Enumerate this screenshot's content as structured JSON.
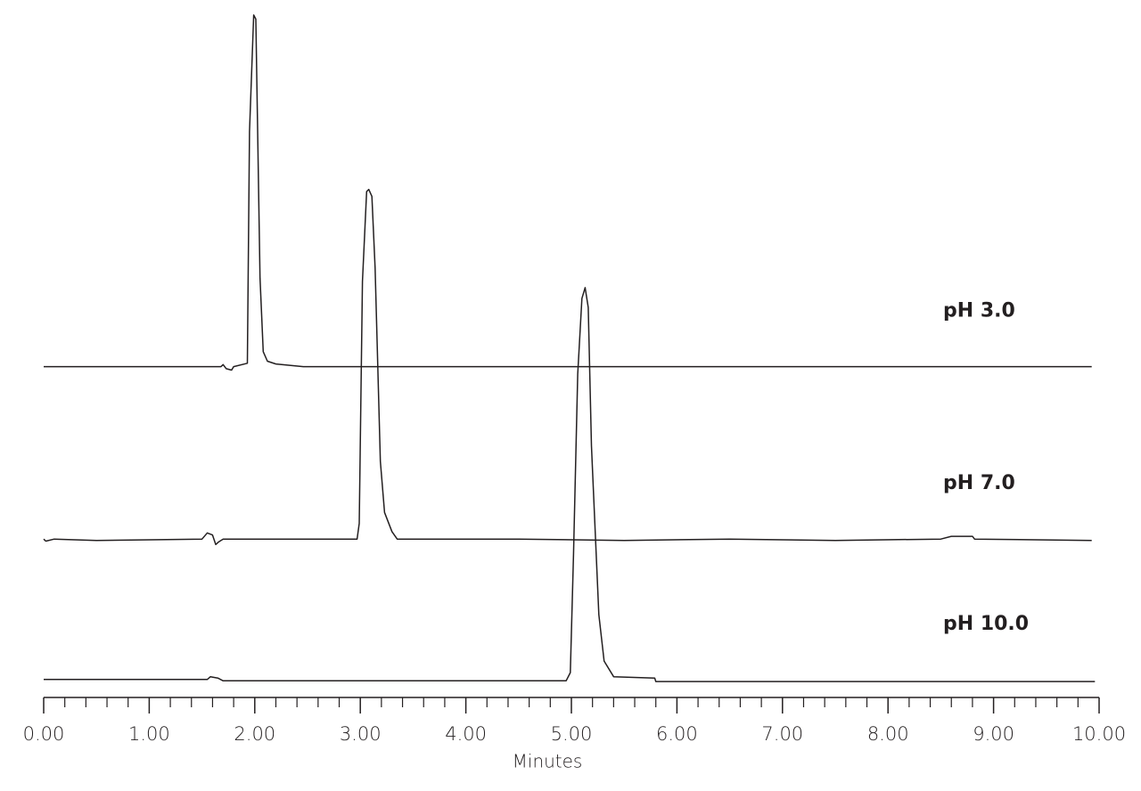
{
  "chart_data": {
    "type": "line",
    "x_label": "Minutes",
    "xlim": [
      0,
      10
    ],
    "ylim": [
      0,
      100
    ],
    "xticks": [
      {
        "value": 0,
        "label": "0.00"
      },
      {
        "value": 1,
        "label": "1.00"
      },
      {
        "value": 2,
        "label": "2.00"
      },
      {
        "value": 3,
        "label": "3.00"
      },
      {
        "value": 4,
        "label": "4.00"
      },
      {
        "value": 5,
        "label": "5.00"
      },
      {
        "value": 6,
        "label": "6.00"
      },
      {
        "value": 7,
        "label": "7.00"
      },
      {
        "value": 8,
        "label": "8.00"
      },
      {
        "value": 9,
        "label": "9.00"
      },
      {
        "value": 10,
        "label": "10.00"
      }
    ],
    "xminorticks": [
      0.2,
      0.4,
      0.6,
      0.8,
      1.2,
      1.4,
      1.6,
      1.8,
      2.2,
      2.4,
      2.6,
      2.8,
      3.2,
      3.4,
      3.6,
      3.8,
      4.2,
      4.4,
      4.6,
      4.8,
      5.2,
      5.4,
      5.6,
      5.8,
      6.2,
      6.4,
      6.6,
      6.8,
      7.2,
      7.4,
      7.6,
      7.8,
      8.2,
      8.4,
      8.6,
      8.8,
      9.2,
      9.4,
      9.6,
      9.8
    ],
    "series": [
      {
        "name": "pH 3.0",
        "color": "#231f20",
        "x": [
          0,
          1.68,
          1.7,
          1.73,
          1.78,
          1.8,
          1.93,
          1.95,
          1.99,
          2.01,
          2.05,
          2.08,
          2.12,
          2.2,
          2.46,
          9.93
        ],
        "values": [
          47.5,
          47.5,
          47.8,
          47.2,
          47.0,
          47.5,
          48.0,
          82,
          99.1,
          98.5,
          60.5,
          49.7,
          48.3,
          47.9,
          47.5,
          47.5
        ]
      },
      {
        "name": "pH 7.0",
        "color": "#231f20",
        "x": [
          0,
          0.02,
          0.1,
          0.5,
          1.5,
          1.55,
          1.6,
          1.63,
          1.66,
          1.7,
          2.97,
          2.99,
          3.02,
          3.06,
          3.08,
          3.11,
          3.14,
          3.19,
          3.23,
          3.3,
          3.35,
          4.5,
          5.5,
          6.5,
          7.5,
          8.5,
          8.6,
          8.8,
          8.82,
          9.93
        ],
        "values": [
          22.2,
          21.9,
          22.2,
          22.0,
          22.2,
          23.1,
          22.8,
          21.4,
          21.8,
          22.2,
          22.2,
          24.5,
          60,
          73.2,
          73.5,
          72.5,
          62,
          33.6,
          26.1,
          23.3,
          22.2,
          22.2,
          22.0,
          22.2,
          22.0,
          22.2,
          22.6,
          22.6,
          22.2,
          22.0
        ]
      },
      {
        "name": "pH 10.0",
        "color": "#231f20",
        "x": [
          0,
          1.55,
          1.58,
          1.65,
          1.7,
          4.95,
          4.99,
          5.02,
          5.06,
          5.1,
          5.13,
          5.16,
          5.19,
          5.26,
          5.31,
          5.4,
          5.79,
          5.8,
          9.96
        ],
        "values": [
          1.6,
          1.6,
          2.0,
          1.8,
          1.4,
          1.4,
          2.6,
          20,
          46.4,
          57.5,
          59.1,
          56.2,
          35.9,
          11.1,
          4.3,
          2.0,
          1.8,
          1.3,
          1.3
        ]
      }
    ]
  }
}
